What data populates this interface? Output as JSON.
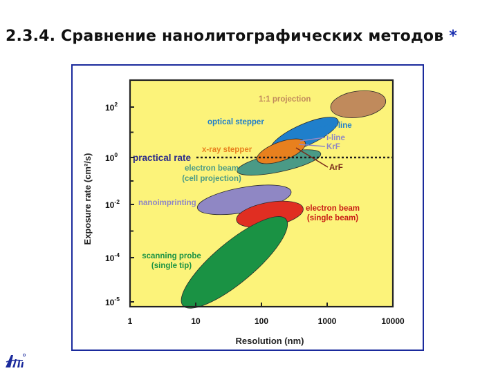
{
  "slide": {
    "title": "2.3.4. Сравнение нанолитографических методов",
    "title_mark": "*"
  },
  "colors": {
    "plot_background": "#fcf37a",
    "frame_border": "#1a2a9c",
    "axis": "#222222",
    "dotted_line": "#1a1a1a"
  },
  "chart_data": {
    "type": "scatter",
    "title": "",
    "xlabel": "Resolution (nm)",
    "ylabel": "Exposure rate (cm²/s)",
    "x_scale": "log",
    "y_scale": "log",
    "xlim": [
      1,
      10000
    ],
    "ylim": [
      6e-06,
      1000
    ],
    "x_ticks": [
      {
        "value": 1,
        "label": "1"
      },
      {
        "value": 10,
        "label": "10"
      },
      {
        "value": 100,
        "label": "100"
      },
      {
        "value": 1000,
        "label": "1000"
      },
      {
        "value": 10000,
        "label": "10000"
      }
    ],
    "y_ticks": [
      {
        "value": 1e-05,
        "base": "10",
        "exp": "-5"
      },
      {
        "value": 0.0001,
        "base": "10",
        "exp": "-4"
      },
      {
        "value": 0.01,
        "base": "10",
        "exp": "-2"
      },
      {
        "value": 1,
        "base": "10",
        "exp": "0"
      },
      {
        "value": 100,
        "base": "10",
        "exp": "2"
      }
    ],
    "y_minor_ticks": [
      0.001,
      0.1,
      10
    ],
    "reference_line": {
      "label": "practical rate",
      "y": 1,
      "color": "#2a2a8a"
    },
    "regions": [
      {
        "name": "1:1 projection",
        "x_range": [
          1100,
          8000
        ],
        "y_range": [
          30,
          500
        ],
        "color": "#c08a5c",
        "label_color": "#c08a5c"
      },
      {
        "name": "optical stepper",
        "x_range": [
          120,
          1700
        ],
        "y_range": [
          1.5,
          40
        ],
        "color": "#1f7fcb",
        "label_color": "#1f7fcb"
      },
      {
        "name": "electron beam (cell projection)",
        "x_range": [
          40,
          850
        ],
        "y_range": [
          0.2,
          1.8
        ],
        "color": "#4a9a86",
        "label_color": "#4a9a86"
      },
      {
        "name": "x-ray stepper",
        "x_range": [
          80,
          500
        ],
        "y_range": [
          0.6,
          5
        ],
        "color": "#e8801e",
        "label_color": "#e8801e"
      },
      {
        "name": "nanoimprinting",
        "x_range": [
          10,
          300
        ],
        "y_range": [
          0.004,
          0.07
        ],
        "color": "#8f87c4",
        "label_color": "#8f87c4"
      },
      {
        "name": "electron beam (single beam)",
        "x_range": [
          40,
          450
        ],
        "y_range": [
          0.0012,
          0.016
        ],
        "color": "#e02e22",
        "label_color": "#c81a14"
      },
      {
        "name": "scanning probe (single tip)",
        "x_range": [
          5,
          300
        ],
        "y_range": [
          1.2e-05,
          0.0015
        ],
        "color": "#1a9244",
        "label_color": "#1a9244"
      }
    ],
    "annotations": [
      {
        "text": "g-line",
        "color": "#1f7fcb"
      },
      {
        "text": "i-line",
        "color": "#8f87c4"
      },
      {
        "text": "KrF",
        "color": "#8f87c4"
      },
      {
        "text": "ArF",
        "color": "#7a2a1a"
      }
    ],
    "grid": false,
    "legend": "none"
  }
}
